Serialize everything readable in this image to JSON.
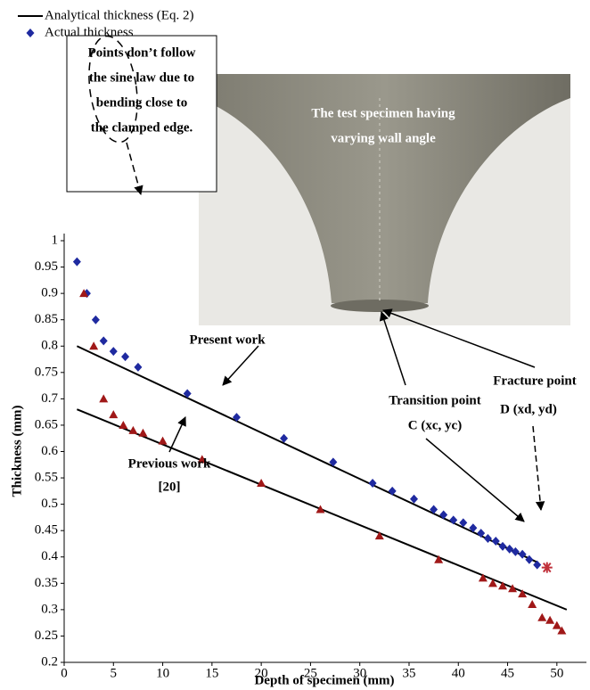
{
  "chart_data": {
    "type": "scatter",
    "xlabel": "Depth of specimen (mm)",
    "ylabel": "Thickness (mm)",
    "xlim": [
      0,
      53
    ],
    "ylim": [
      0.2,
      1
    ],
    "xticks": [
      0,
      5,
      10,
      15,
      20,
      25,
      30,
      35,
      40,
      45,
      50
    ],
    "yticks": [
      0.2,
      0.25,
      0.3,
      0.35,
      0.4,
      0.45,
      0.5,
      0.55,
      0.6,
      0.65,
      0.7,
      0.75,
      0.8,
      0.85,
      0.9,
      0.95,
      1
    ],
    "grid": false,
    "legend": "top-left",
    "series": [
      {
        "name": "Analytical thickness (Eq. 2)",
        "color": "#000000",
        "marker": "line",
        "x": [
          1.3,
          48
        ],
        "values": [
          0.8,
          0.39
        ]
      },
      {
        "color": "#000000",
        "marker": "line",
        "x": [
          1.3,
          51
        ],
        "values": [
          0.68,
          0.3
        ]
      },
      {
        "name": "Actual thickness",
        "color": "#1f2aa0",
        "marker": "diamond",
        "x": [
          1.3,
          2.3,
          3.2,
          4,
          5,
          6.2,
          7.5,
          12.5,
          17.5,
          22.3,
          27.3,
          31.3,
          33.3,
          35.5,
          37.5,
          38.5,
          39.5,
          40.5,
          41.5,
          42.3,
          43,
          43.8,
          44.5,
          45.2,
          45.8,
          46.5,
          47.2,
          48
        ],
        "values": [
          0.96,
          0.9,
          0.85,
          0.81,
          0.79,
          0.78,
          0.76,
          0.71,
          0.665,
          0.625,
          0.58,
          0.54,
          0.525,
          0.51,
          0.49,
          0.48,
          0.47,
          0.465,
          0.455,
          0.445,
          0.435,
          0.43,
          0.42,
          0.415,
          0.41,
          0.405,
          0.395,
          0.385
        ]
      },
      {
        "color": "#a01818",
        "marker": "triangle",
        "x": [
          2,
          3,
          4,
          5,
          6,
          7,
          8,
          10,
          14,
          20,
          26,
          32,
          38,
          42.5,
          43.5,
          44.5,
          45.5,
          46.5,
          47.5,
          48.5,
          49.3,
          50,
          50.5
        ],
        "values": [
          0.9,
          0.8,
          0.7,
          0.67,
          0.65,
          0.64,
          0.635,
          0.62,
          0.585,
          0.54,
          0.49,
          0.44,
          0.395,
          0.36,
          0.35,
          0.345,
          0.34,
          0.33,
          0.31,
          0.285,
          0.28,
          0.27,
          0.26
        ]
      },
      {
        "color": "#c0303a",
        "marker": "asterisk",
        "x": [
          49
        ],
        "values": [
          0.38
        ]
      }
    ],
    "annotations": [
      "Points don’t follow",
      "the sine law due to",
      "bending close to",
      "the clamped edge.",
      "The test  specimen having",
      "varying wall angle",
      "Present work",
      "Previous work",
      "[20]",
      "Transition point",
      "C (xc, yc)",
      "Fracture point",
      "D (xd, yd)"
    ]
  }
}
